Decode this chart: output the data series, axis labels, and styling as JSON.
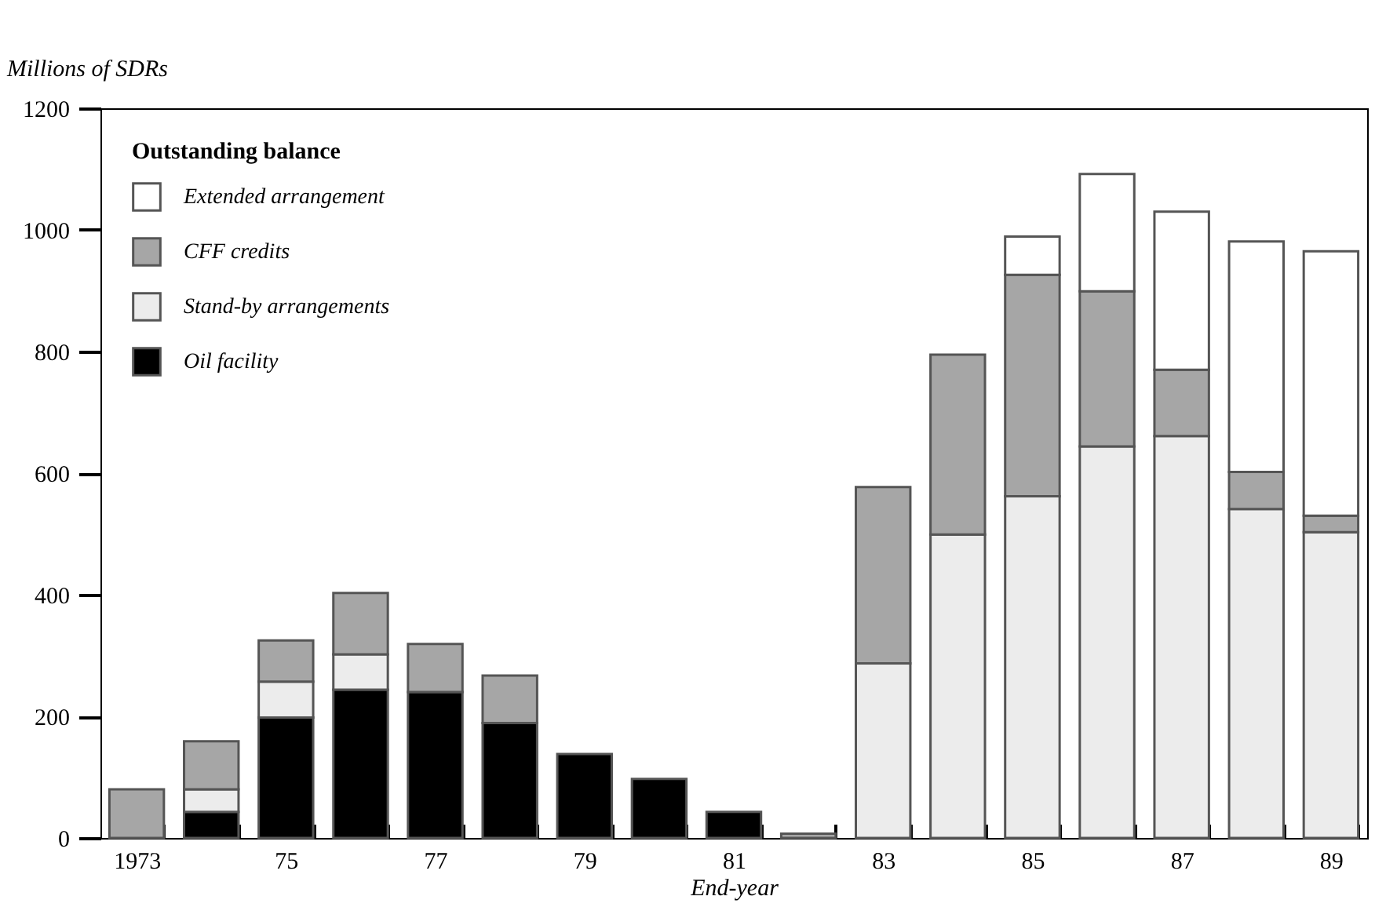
{
  "chart_data": {
    "type": "bar",
    "stacked": true,
    "ylabel": "Millions of SDRs",
    "xlabel": "End-year",
    "legend_title": "Outstanding balance",
    "legend": "top left",
    "categories": [
      "1973",
      null,
      "75",
      null,
      "77",
      null,
      "79",
      null,
      "81",
      null,
      "83",
      null,
      "85",
      null,
      "87",
      null,
      "89"
    ],
    "series": [
      {
        "name": "Oil facility",
        "color": "#000000",
        "values": [
          null,
          43,
          198,
          244,
          240,
          189,
          138,
          97,
          43,
          null,
          null,
          null,
          null,
          null,
          null,
          null,
          null
        ]
      },
      {
        "name": "Stand-by arrangements",
        "color": "#ececec",
        "values": [
          null,
          37,
          59,
          58,
          null,
          null,
          null,
          null,
          null,
          null,
          287,
          499,
          562,
          644,
          661,
          541,
          503
        ]
      },
      {
        "name": "CFF credits",
        "color": "#a6a6a6",
        "values": [
          80,
          79,
          68,
          101,
          79,
          78,
          null,
          null,
          null,
          7,
          290,
          296,
          364,
          255,
          109,
          61,
          27
        ]
      },
      {
        "name": "Extended arrangement",
        "color": "#ffffff",
        "values": [
          null,
          null,
          null,
          null,
          null,
          null,
          null,
          null,
          null,
          null,
          null,
          null,
          63,
          193,
          260,
          379,
          435
        ]
      }
    ],
    "ylim": [
      0,
      1200
    ],
    "yticks": [
      0,
      200,
      400,
      600,
      800,
      1000,
      1200
    ],
    "grid": false
  }
}
